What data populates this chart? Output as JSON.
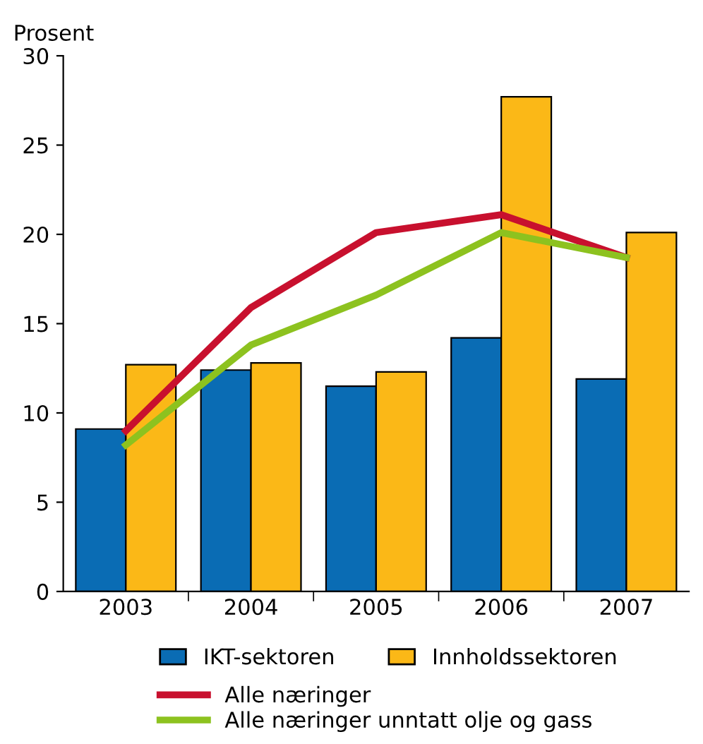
{
  "chart_data": {
    "type": "bar",
    "ylabel": "Prosent",
    "categories": [
      "2003",
      "2004",
      "2005",
      "2006",
      "2007"
    ],
    "series": [
      {
        "name": "IKT-sektoren",
        "color": "#0a6cb4",
        "values": [
          9.1,
          12.4,
          11.5,
          14.2,
          11.9
        ]
      },
      {
        "name": "Innholdssektoren",
        "color": "#fbb817",
        "values": [
          12.7,
          12.8,
          12.3,
          27.7,
          20.1
        ]
      },
      {
        "name": "Alle næringer",
        "type": "line",
        "color": "#c8102e",
        "values": [
          9.0,
          15.9,
          20.1,
          21.1,
          18.7
        ]
      },
      {
        "name": "Alle næringer unntatt olje og gass",
        "type": "line",
        "color": "#8dc21f",
        "values": [
          8.2,
          13.8,
          16.6,
          20.1,
          18.7
        ]
      }
    ],
    "ylim": [
      0,
      30
    ],
    "yticks": [
      0,
      5,
      10,
      15,
      20,
      25,
      30
    ],
    "grid": false,
    "legend": "bottom"
  }
}
